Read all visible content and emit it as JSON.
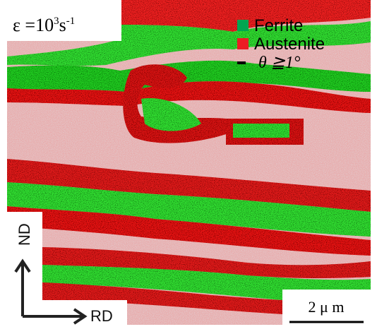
{
  "label": {
    "parts": [
      "ε =10",
      "3",
      "s",
      "-1"
    ]
  },
  "legend": [
    {
      "name": "Ferrite",
      "color": "#00a651"
    },
    {
      "name": "Austenite",
      "color": "#ed1c24"
    },
    {
      "name": "θ ≧1°",
      "color": "#000000"
    }
  ],
  "axes": {
    "vertical": "ND",
    "horizontal": "RD"
  },
  "scale_bar": "2 μ m"
}
